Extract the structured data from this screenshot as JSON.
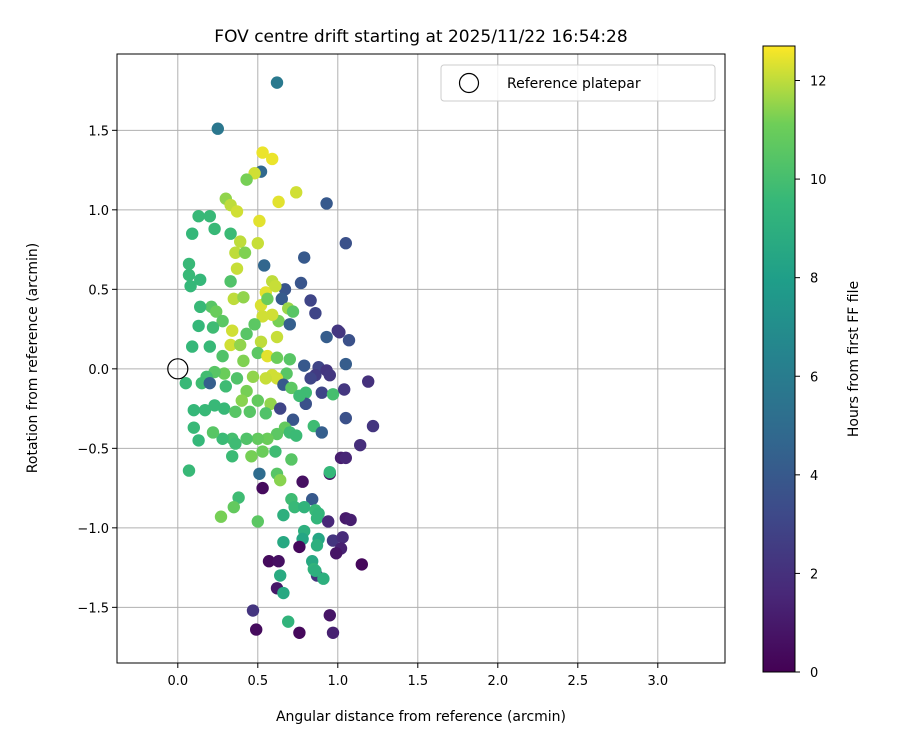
{
  "chart_data": {
    "type": "scatter",
    "title": "FOV centre drift starting at 2025/11/22 16:54:28",
    "xlabel": "Angular distance from reference (arcmin)",
    "ylabel": "Rotation from reference (arcmin)",
    "xlim": [
      -0.38,
      3.42
    ],
    "ylim": [
      -1.85,
      1.98
    ],
    "xticks": [
      "0.0",
      "0.5",
      "1.0",
      "1.5",
      "2.0",
      "2.5",
      "3.0"
    ],
    "xtick_values": [
      0,
      0.5,
      1.0,
      1.5,
      2.0,
      2.5,
      3.0
    ],
    "yticks": [
      "−1.5",
      "−1.0",
      "−0.5",
      "0.0",
      "0.5",
      "1.0",
      "1.5"
    ],
    "ytick_values": [
      -1.5,
      -1.0,
      -0.5,
      0.0,
      0.5,
      1.0,
      1.5
    ],
    "grid": true,
    "legend": {
      "label": "Reference platepar",
      "position": "top-right"
    },
    "reference_point": {
      "x": 0.0,
      "y": 0.0
    },
    "colorbar": {
      "label": "Hours from first FF file",
      "colormap": "viridis",
      "range": [
        0,
        12.7
      ],
      "ticks": [
        "0",
        "2",
        "4",
        "6",
        "8",
        "10",
        "12"
      ],
      "tick_values": [
        0,
        2,
        4,
        6,
        8,
        10,
        12
      ]
    },
    "points": [
      [
        0.62,
        1.8,
        5.8
      ],
      [
        0.25,
        1.51,
        5.7
      ],
      [
        0.93,
        1.04,
        4.0
      ],
      [
        1.05,
        0.79,
        3.6
      ],
      [
        0.53,
        1.36,
        12.5
      ],
      [
        0.59,
        1.32,
        12.5
      ],
      [
        0.52,
        1.24,
        4.8
      ],
      [
        0.48,
        1.23,
        12.2
      ],
      [
        0.74,
        1.11,
        12.2
      ],
      [
        0.63,
        1.05,
        12.4
      ],
      [
        0.43,
        1.19,
        11.2
      ],
      [
        0.3,
        1.07,
        11.5
      ],
      [
        0.33,
        1.03,
        12.0
      ],
      [
        0.37,
        0.99,
        12.2
      ],
      [
        0.51,
        0.93,
        12.4
      ],
      [
        0.13,
        0.96,
        9.6
      ],
      [
        0.2,
        0.96,
        9.6
      ],
      [
        0.09,
        0.85,
        9.5
      ],
      [
        0.23,
        0.88,
        9.6
      ],
      [
        0.33,
        0.85,
        9.7
      ],
      [
        0.39,
        0.8,
        12.0
      ],
      [
        0.5,
        0.79,
        12.1
      ],
      [
        0.36,
        0.73,
        12.0
      ],
      [
        0.42,
        0.73,
        11.3
      ],
      [
        0.79,
        0.7,
        4.0
      ],
      [
        0.54,
        0.65,
        4.7
      ],
      [
        0.37,
        0.63,
        12.1
      ],
      [
        0.07,
        0.66,
        9.6
      ],
      [
        0.07,
        0.59,
        9.6
      ],
      [
        0.14,
        0.56,
        9.5
      ],
      [
        0.08,
        0.52,
        9.5
      ],
      [
        0.33,
        0.55,
        10.3
      ],
      [
        0.59,
        0.55,
        12.0
      ],
      [
        0.67,
        0.5,
        3.8
      ],
      [
        0.55,
        0.48,
        12.4
      ],
      [
        0.61,
        0.52,
        12.1
      ],
      [
        0.77,
        0.54,
        3.8
      ],
      [
        0.83,
        0.43,
        3.0
      ],
      [
        0.52,
        0.4,
        12.3
      ],
      [
        0.35,
        0.44,
        12.0
      ],
      [
        0.41,
        0.45,
        11.5
      ],
      [
        0.21,
        0.39,
        10.5
      ],
      [
        0.14,
        0.39,
        9.6
      ],
      [
        0.24,
        0.36,
        11.0
      ],
      [
        0.28,
        0.3,
        10.6
      ],
      [
        0.56,
        0.44,
        11.0
      ],
      [
        0.65,
        0.44,
        4.1
      ],
      [
        0.86,
        0.35,
        3.0
      ],
      [
        0.69,
        0.38,
        11.6
      ],
      [
        0.72,
        0.36,
        10.5
      ],
      [
        0.63,
        0.3,
        11.2
      ],
      [
        0.7,
        0.28,
        4.3
      ],
      [
        0.59,
        0.34,
        12.2
      ],
      [
        0.53,
        0.33,
        12.2
      ],
      [
        0.48,
        0.28,
        10.6
      ],
      [
        0.22,
        0.26,
        9.8
      ],
      [
        0.13,
        0.27,
        9.5
      ],
      [
        0.34,
        0.24,
        12.2
      ],
      [
        0.43,
        0.22,
        10.5
      ],
      [
        0.62,
        0.2,
        12.1
      ],
      [
        0.52,
        0.17,
        12.0
      ],
      [
        1.0,
        0.24,
        2.3
      ],
      [
        1.01,
        0.23,
        2.3
      ],
      [
        1.07,
        0.18,
        3.6
      ],
      [
        0.93,
        0.2,
        4.2
      ],
      [
        0.09,
        0.14,
        9.5
      ],
      [
        0.2,
        0.14,
        9.6
      ],
      [
        0.33,
        0.15,
        12.2
      ],
      [
        0.39,
        0.15,
        11.5
      ],
      [
        0.5,
        0.1,
        10.6
      ],
      [
        0.56,
        0.08,
        12.4
      ],
      [
        0.62,
        0.07,
        11.0
      ],
      [
        0.7,
        0.06,
        10.5
      ],
      [
        0.28,
        0.08,
        10.3
      ],
      [
        0.41,
        0.05,
        11.3
      ],
      [
        0.79,
        0.02,
        4.0
      ],
      [
        0.88,
        0.01,
        3.0
      ],
      [
        0.93,
        -0.01,
        2.2
      ],
      [
        1.05,
        0.03,
        4.2
      ],
      [
        0.86,
        -0.04,
        2.5
      ],
      [
        0.95,
        -0.04,
        2.3
      ],
      [
        0.83,
        -0.06,
        3.0
      ],
      [
        0.68,
        -0.03,
        10.5
      ],
      [
        0.59,
        -0.04,
        12.2
      ],
      [
        0.62,
        -0.06,
        12.2
      ],
      [
        0.55,
        -0.06,
        12.1
      ],
      [
        0.47,
        -0.05,
        11.5
      ],
      [
        0.37,
        -0.06,
        10.3
      ],
      [
        0.29,
        -0.03,
        11.0
      ],
      [
        0.23,
        -0.02,
        10.5
      ],
      [
        0.18,
        -0.05,
        9.9
      ],
      [
        0.15,
        -0.09,
        9.8
      ],
      [
        0.05,
        -0.09,
        9.6
      ],
      [
        0.2,
        -0.09,
        4.3
      ],
      [
        0.3,
        -0.11,
        9.8
      ],
      [
        0.43,
        -0.14,
        11.2
      ],
      [
        0.66,
        -0.1,
        4.0
      ],
      [
        0.71,
        -0.12,
        10.6
      ],
      [
        0.9,
        -0.15,
        3.0
      ],
      [
        0.97,
        -0.16,
        10.0
      ],
      [
        1.04,
        -0.13,
        2.3
      ],
      [
        1.19,
        -0.08,
        2.0
      ],
      [
        0.8,
        -0.15,
        9.8
      ],
      [
        0.8,
        -0.22,
        3.6
      ],
      [
        0.76,
        -0.17,
        9.8
      ],
      [
        0.4,
        -0.2,
        11.4
      ],
      [
        0.5,
        -0.2,
        10.8
      ],
      [
        0.58,
        -0.22,
        11.5
      ],
      [
        0.64,
        -0.25,
        3.0
      ],
      [
        0.72,
        -0.32,
        3.8
      ],
      [
        0.23,
        -0.23,
        9.6
      ],
      [
        0.17,
        -0.26,
        9.6
      ],
      [
        0.1,
        -0.26,
        9.5
      ],
      [
        0.29,
        -0.25,
        9.6
      ],
      [
        0.36,
        -0.27,
        10.5
      ],
      [
        0.45,
        -0.27,
        10.5
      ],
      [
        0.55,
        -0.28,
        10.3
      ],
      [
        1.05,
        -0.31,
        3.6
      ],
      [
        1.22,
        -0.36,
        2.2
      ],
      [
        0.85,
        -0.36,
        9.8
      ],
      [
        0.9,
        -0.4,
        4.3
      ],
      [
        0.67,
        -0.37,
        10.8
      ],
      [
        0.7,
        -0.4,
        9.8
      ],
      [
        0.74,
        -0.42,
        9.7
      ],
      [
        0.62,
        -0.41,
        10.6
      ],
      [
        0.56,
        -0.44,
        11.0
      ],
      [
        0.5,
        -0.44,
        10.8
      ],
      [
        0.43,
        -0.44,
        10.3
      ],
      [
        0.34,
        -0.44,
        10.0
      ],
      [
        0.28,
        -0.44,
        9.7
      ],
      [
        0.22,
        -0.4,
        10.5
      ],
      [
        0.1,
        -0.37,
        9.6
      ],
      [
        0.13,
        -0.45,
        9.5
      ],
      [
        0.36,
        -0.47,
        9.8
      ],
      [
        0.53,
        -0.52,
        11.0
      ],
      [
        0.46,
        -0.55,
        11.2
      ],
      [
        0.34,
        -0.55,
        9.7
      ],
      [
        0.51,
        -0.66,
        5.0
      ],
      [
        0.62,
        -0.66,
        10.5
      ],
      [
        0.07,
        -0.64,
        9.6
      ],
      [
        0.61,
        -0.52,
        9.8
      ],
      [
        0.71,
        -0.57,
        10.5
      ],
      [
        0.95,
        -0.66,
        0.6
      ],
      [
        0.95,
        -0.65,
        9.5
      ],
      [
        1.02,
        -0.56,
        1.2
      ],
      [
        1.05,
        -0.56,
        1.5
      ],
      [
        1.14,
        -0.48,
        1.9
      ],
      [
        0.64,
        -0.7,
        11.4
      ],
      [
        0.53,
        -0.75,
        0.4
      ],
      [
        0.78,
        -0.71,
        0.6
      ],
      [
        0.38,
        -0.81,
        9.8
      ],
      [
        0.35,
        -0.87,
        10.8
      ],
      [
        0.71,
        -0.82,
        9.8
      ],
      [
        0.73,
        -0.87,
        9.6
      ],
      [
        0.84,
        -0.82,
        4.0
      ],
      [
        0.86,
        -0.89,
        9.6
      ],
      [
        0.88,
        -0.91,
        9.4
      ],
      [
        0.79,
        -0.87,
        9.3
      ],
      [
        0.27,
        -0.93,
        11.2
      ],
      [
        0.5,
        -0.96,
        10.6
      ],
      [
        0.87,
        -0.94,
        9.4
      ],
      [
        0.94,
        -0.96,
        1.6
      ],
      [
        1.05,
        -0.94,
        1.0
      ],
      [
        1.08,
        -0.95,
        1.2
      ],
      [
        0.66,
        -0.92,
        9.0
      ],
      [
        0.79,
        -1.02,
        9.0
      ],
      [
        0.78,
        -1.07,
        8.4
      ],
      [
        0.88,
        -1.07,
        8.4
      ],
      [
        0.87,
        -1.11,
        9.0
      ],
      [
        0.97,
        -1.08,
        2.2
      ],
      [
        1.03,
        -1.06,
        1.8
      ],
      [
        1.02,
        -1.13,
        1.3
      ],
      [
        0.99,
        -1.16,
        0.8
      ],
      [
        0.76,
        -1.12,
        0.3
      ],
      [
        0.66,
        -1.09,
        8.6
      ],
      [
        0.84,
        -1.21,
        8.6
      ],
      [
        0.85,
        -1.26,
        9.3
      ],
      [
        0.87,
        -1.3,
        2.1
      ],
      [
        0.91,
        -1.32,
        9.0
      ],
      [
        1.15,
        -1.23,
        0.3
      ],
      [
        0.57,
        -1.21,
        0.4
      ],
      [
        0.63,
        -1.21,
        0.6
      ],
      [
        0.64,
        -1.3,
        8.7
      ],
      [
        0.62,
        -1.38,
        0.9
      ],
      [
        0.66,
        -1.41,
        8.6
      ],
      [
        0.47,
        -1.52,
        2.2
      ],
      [
        0.49,
        -1.64,
        0.4
      ],
      [
        0.69,
        -1.59,
        9.3
      ],
      [
        0.76,
        -1.66,
        0.3
      ],
      [
        0.95,
        -1.55,
        0.8
      ],
      [
        0.97,
        -1.66,
        1.3
      ],
      [
        0.86,
        -1.27,
        9.0
      ]
    ]
  }
}
